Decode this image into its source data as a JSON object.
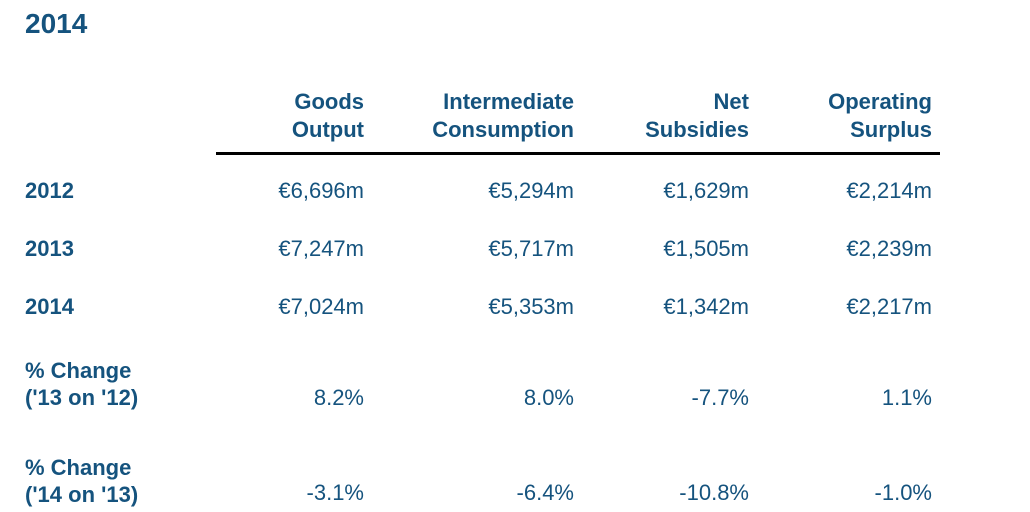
{
  "page": {
    "title": "2014"
  },
  "table": {
    "columns_lines": [
      [
        "Goods",
        "Output"
      ],
      [
        "Intermediate",
        "Consumption"
      ],
      [
        "Net",
        "Subsidies"
      ],
      [
        "Operating",
        "Surplus"
      ]
    ],
    "rows": [
      {
        "label_lines": [
          "2012"
        ],
        "values": [
          "€6,696m",
          "€5,294m",
          "€1,629m",
          "€2,214m"
        ]
      },
      {
        "label_lines": [
          "2013"
        ],
        "values": [
          "€7,247m",
          "€5,717m",
          "€1,505m",
          "€2,239m"
        ]
      },
      {
        "label_lines": [
          "2014"
        ],
        "values": [
          "€7,024m",
          "€5,353m",
          "€1,342m",
          "€2,217m"
        ]
      },
      {
        "label_lines": [
          "% Change",
          "('13 on '12)"
        ],
        "values": [
          "8.2%",
          "8.0%",
          "-7.7%",
          "1.1%"
        ]
      },
      {
        "label_lines": [
          "% Change",
          "('14 on '13)"
        ],
        "values": [
          "-3.1%",
          "-6.4%",
          "-10.8%",
          "-1.0%"
        ]
      }
    ],
    "colors": {
      "text": "#15537e",
      "rule": "#000000"
    }
  },
  "chart_data": {
    "type": "table",
    "title": "2014",
    "categories": [
      "Goods Output",
      "Intermediate Consumption",
      "Net Subsidies",
      "Operating Surplus"
    ],
    "series": [
      {
        "name": "2012",
        "values": [
          6696,
          5294,
          1629,
          2214
        ],
        "unit": "€m"
      },
      {
        "name": "2013",
        "values": [
          7247,
          5717,
          1505,
          2239
        ],
        "unit": "€m"
      },
      {
        "name": "2014",
        "values": [
          7024,
          5353,
          1342,
          2217
        ],
        "unit": "€m"
      },
      {
        "name": "% Change ('13 on '12)",
        "values": [
          8.2,
          8.0,
          -7.7,
          1.1
        ],
        "unit": "%"
      },
      {
        "name": "% Change ('14 on '13)",
        "values": [
          -3.1,
          -6.4,
          -10.8,
          -1.0
        ],
        "unit": "%"
      }
    ]
  }
}
